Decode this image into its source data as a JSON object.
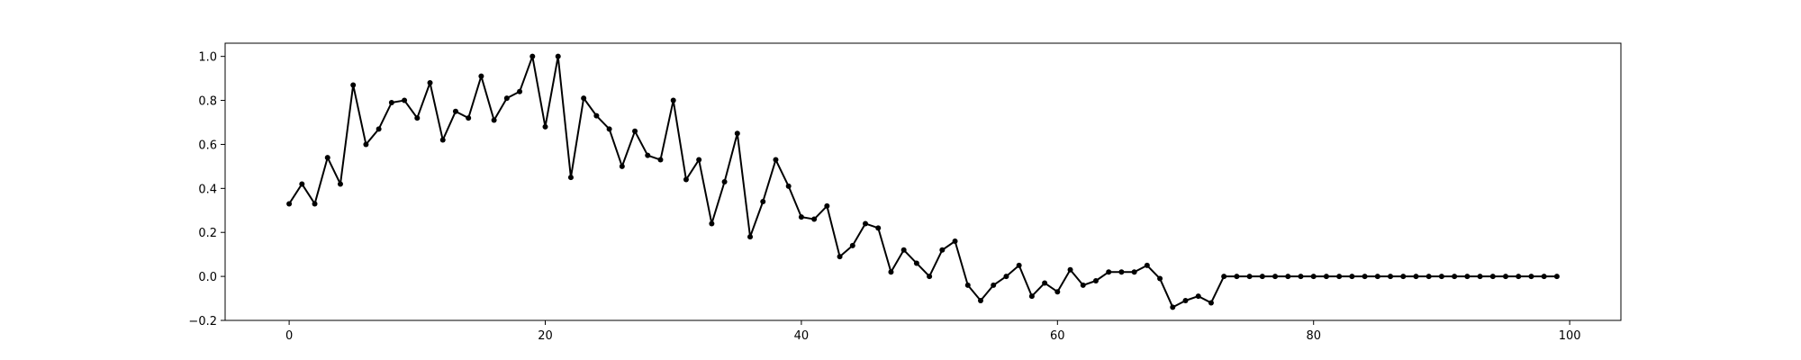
{
  "chart_data": {
    "type": "line",
    "title": "",
    "xlabel": "",
    "ylabel": "",
    "xlim": [
      -5.0,
      104.0
    ],
    "ylim": [
      -0.2,
      1.06
    ],
    "xticks": [
      0,
      20,
      40,
      60,
      80,
      100
    ],
    "xtick_labels": [
      "0",
      "20",
      "40",
      "60",
      "80",
      "100"
    ],
    "yticks": [
      -0.2,
      0.0,
      0.2,
      0.4,
      0.6,
      0.8,
      1.0
    ],
    "ytick_labels": [
      "−0.2",
      "0.0",
      "0.2",
      "0.4",
      "0.6",
      "0.8",
      "1.0"
    ],
    "grid": false,
    "legend": "none",
    "series": [
      {
        "color": "#000000",
        "marker": "dot",
        "x": [
          0,
          1,
          2,
          3,
          4,
          5,
          6,
          7,
          8,
          9,
          10,
          11,
          12,
          13,
          14,
          15,
          16,
          17,
          18,
          19,
          20,
          21,
          22,
          23,
          24,
          25,
          26,
          27,
          28,
          29,
          30,
          31,
          32,
          33,
          34,
          35,
          36,
          37,
          38,
          39,
          40,
          41,
          42,
          43,
          44,
          45,
          46,
          47,
          48,
          49,
          50,
          51,
          52,
          53,
          54,
          55,
          56,
          57,
          58,
          59,
          60,
          61,
          62,
          63,
          64,
          65,
          66,
          67,
          68,
          69,
          70,
          71,
          72,
          73,
          74,
          75,
          76,
          77,
          78,
          79,
          80,
          81,
          82,
          83,
          84,
          85,
          86,
          87,
          88,
          89,
          90,
          91,
          92,
          93,
          94,
          95,
          96,
          97,
          98,
          99
        ],
        "values": [
          0.33,
          0.42,
          0.33,
          0.54,
          0.42,
          0.87,
          0.6,
          0.67,
          0.79,
          0.8,
          0.72,
          0.88,
          0.62,
          0.75,
          0.72,
          0.91,
          0.71,
          0.81,
          0.84,
          1.0,
          0.68,
          1.0,
          0.45,
          0.81,
          0.73,
          0.67,
          0.5,
          0.66,
          0.55,
          0.53,
          0.8,
          0.44,
          0.53,
          0.24,
          0.43,
          0.65,
          0.18,
          0.34,
          0.53,
          0.41,
          0.27,
          0.26,
          0.32,
          0.09,
          0.14,
          0.24,
          0.22,
          0.02,
          0.12,
          0.06,
          0.0,
          0.12,
          0.16,
          -0.04,
          -0.11,
          -0.04,
          0.0,
          0.05,
          -0.09,
          -0.03,
          -0.07,
          0.03,
          -0.04,
          -0.02,
          0.02,
          0.02,
          0.02,
          0.05,
          -0.01,
          -0.14,
          -0.11,
          -0.09,
          -0.12,
          0.0,
          0.0,
          0.0,
          0.0,
          0.0,
          0.0,
          0.0,
          0.0,
          0.0,
          0.0,
          0.0,
          0.0,
          0.0,
          0.0,
          0.0,
          0.0,
          0.0,
          0.0,
          0.0,
          0.0,
          0.0,
          0.0,
          0.0,
          0.0,
          0.0,
          0.0,
          0.0
        ]
      }
    ]
  }
}
